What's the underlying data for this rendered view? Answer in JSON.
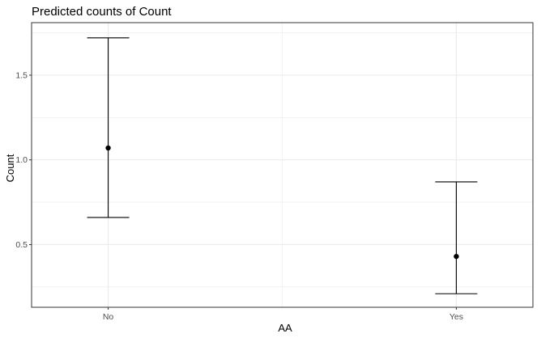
{
  "chart_data": {
    "type": "errorbar",
    "title": "Predicted counts of Count",
    "xlabel": "AA",
    "ylabel": "Count",
    "categories": [
      "No",
      "Yes"
    ],
    "series": [
      {
        "estimate": [
          1.07,
          0.43
        ],
        "lower": [
          0.66,
          0.21
        ],
        "upper": [
          1.72,
          0.87
        ]
      }
    ],
    "y_ticks": [
      0.5,
      1.0,
      1.5
    ],
    "y_tick_labels": [
      "0.5",
      "1.0",
      "1.5"
    ],
    "ylim": [
      0.13,
      1.81
    ],
    "grid": true,
    "legend": "none",
    "colors": {
      "marks": "#000000",
      "grid": "#ebebeb",
      "panel_border": "#333333",
      "tick_text": "#4d4d4d"
    }
  }
}
